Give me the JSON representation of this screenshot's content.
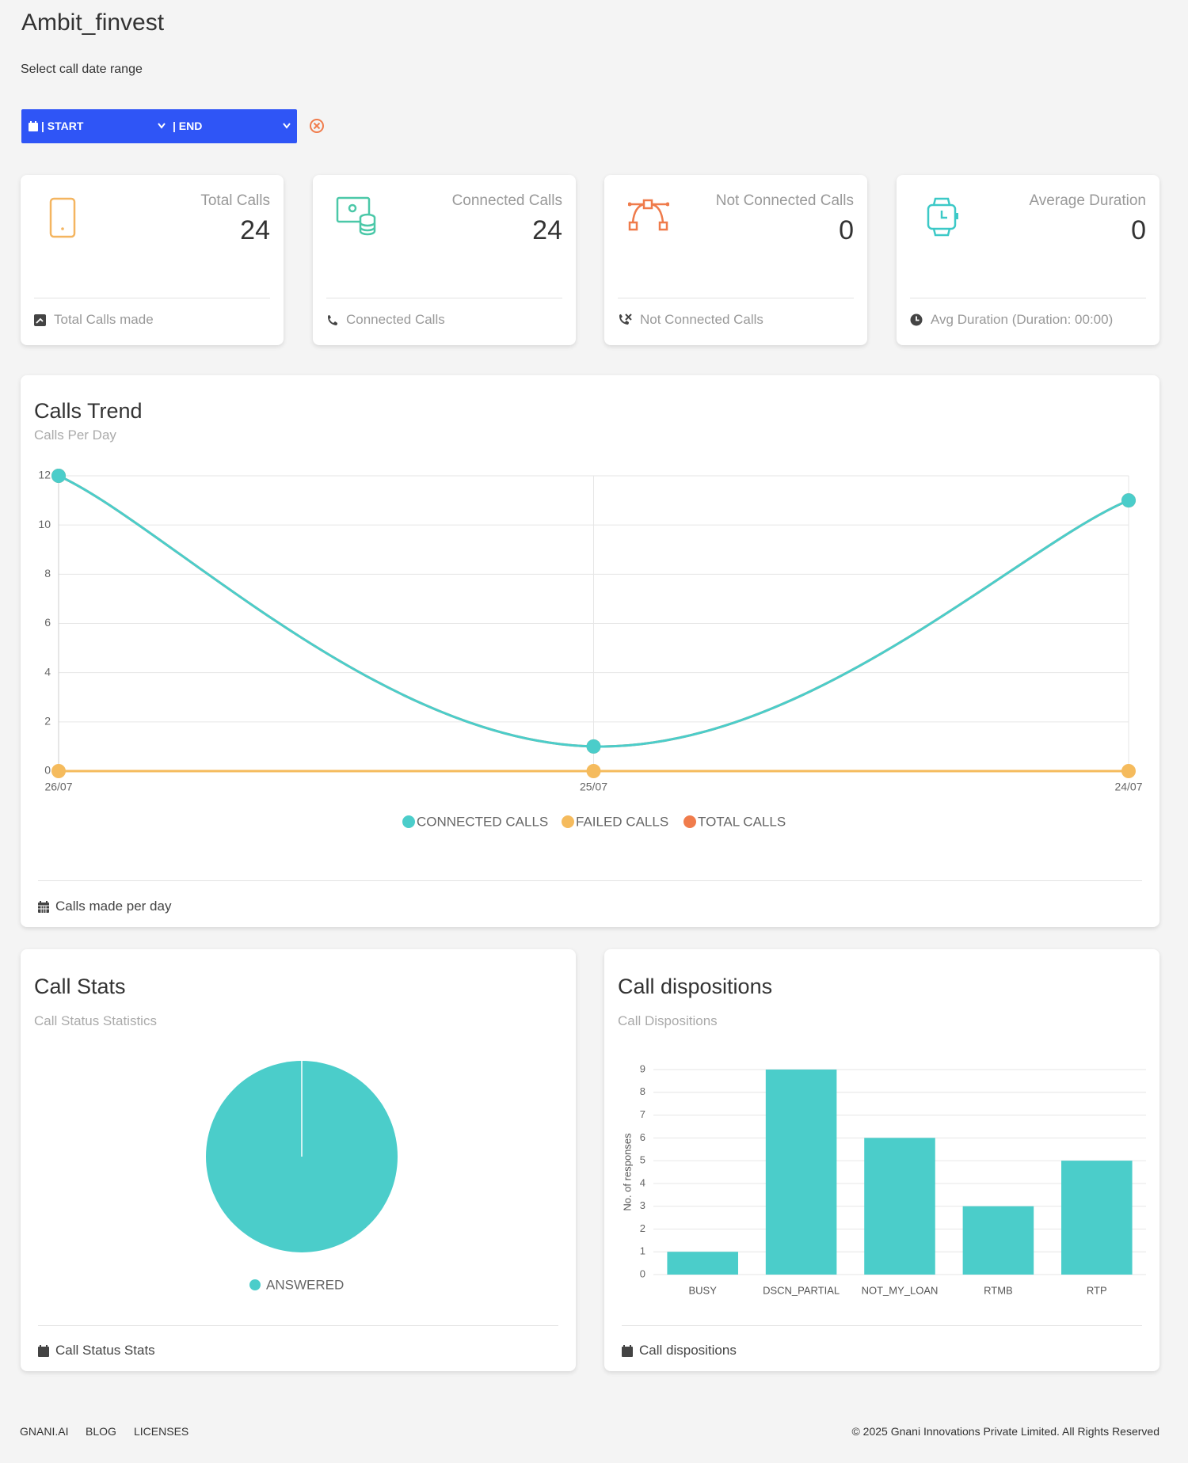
{
  "header": {
    "title": "Ambit_finvest",
    "date_label": "Select call date range",
    "start": "| START",
    "end": "| END"
  },
  "cards": [
    {
      "title": "Total Calls",
      "value": 24,
      "footer": "Total Calls made"
    },
    {
      "title": "Connected Calls",
      "value": 24,
      "footer": "Connected Calls"
    },
    {
      "title": "Not Connected Calls",
      "value": 0,
      "footer": "Not Connected Calls"
    },
    {
      "title": "Average Duration",
      "value": 0,
      "footer": "Avg Duration (Duration: 00:00)"
    }
  ],
  "chart_data": [
    {
      "type": "line",
      "title": "Calls Trend",
      "subtitle": "Calls Per Day",
      "footer": "Calls made per day",
      "categories": [
        "26/07",
        "25/07",
        "24/07"
      ],
      "series": [
        {
          "name": "CONNECTED CALLS",
          "color": "#4bcdca",
          "values": [
            12,
            1,
            11
          ]
        },
        {
          "name": "FAILED CALLS",
          "color": "#f5bb5d",
          "values": [
            0,
            0,
            0
          ]
        },
        {
          "name": "TOTAL CALLS",
          "color": "#f07c4c",
          "values": [
            12,
            1,
            11
          ]
        }
      ],
      "ylim": [
        0,
        12
      ],
      "yticks": [
        0,
        2,
        4,
        6,
        8,
        10,
        12
      ],
      "grid": true
    },
    {
      "type": "pie",
      "title": "Call Stats",
      "subtitle": "Call Status Statistics",
      "footer": "Call Status Stats",
      "categories": [
        "ANSWERED"
      ],
      "values": [
        24
      ],
      "colors": [
        "#4bcdca"
      ]
    },
    {
      "type": "bar",
      "title": "Call dispositions",
      "subtitle": "Call Dispositions",
      "footer": "Call dispositions",
      "ylabel": "No. of responses",
      "categories": [
        "BUSY",
        "DSCN_PARTIAL",
        "NOT_MY_LOAN",
        "RTMB",
        "RTP"
      ],
      "values": [
        1,
        9,
        6,
        3,
        5
      ],
      "color": "#4bcdca",
      "ylim": [
        0,
        9
      ],
      "yticks": [
        0,
        1,
        2,
        3,
        4,
        5,
        6,
        7,
        8,
        9
      ],
      "grid": true
    }
  ],
  "footer": {
    "links": [
      "GNANI.AI",
      "BLOG",
      "LICENSES"
    ],
    "copyright": "© 2025 Gnani Innovations Private Limited. All Rights Reserved"
  }
}
